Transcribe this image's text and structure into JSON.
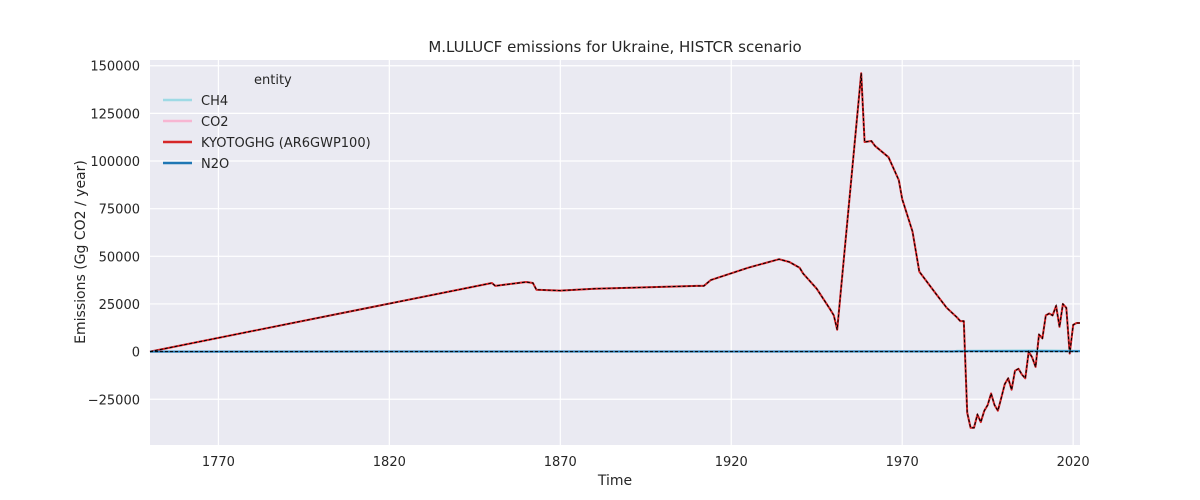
{
  "chart_data": {
    "type": "line",
    "title": "M.LULUCF emissions for Ukraine, HISTCR scenario",
    "xlabel": "Time",
    "ylabel": "Emissions (Gg CO2 / year)",
    "xlim": [
      1750,
      2022
    ],
    "ylim": [
      -49000,
      153000
    ],
    "x_ticks": [
      1770,
      1820,
      1870,
      1920,
      1970,
      2020
    ],
    "y_ticks": [
      -25000,
      0,
      25000,
      50000,
      75000,
      100000,
      125000,
      150000
    ],
    "x_tick_labels": [
      "1770",
      "1820",
      "1870",
      "1920",
      "1970",
      "2020"
    ],
    "y_tick_labels": [
      "−25000",
      "0",
      "25000",
      "50000",
      "75000",
      "100000",
      "125000",
      "150000"
    ],
    "grid": true,
    "legend": {
      "title": "entity",
      "position": "top-left"
    },
    "series": [
      {
        "name": "CH4",
        "color": "#9edae5",
        "x": [
          1750,
          1985,
          1986,
          2010,
          2022
        ],
        "y": [
          0,
          0,
          500,
          700,
          500
        ]
      },
      {
        "name": "CO2",
        "color": "#f7b6d2",
        "x": [
          1750,
          1850,
          1851,
          1860,
          1862,
          1863,
          1870,
          1880,
          1910,
          1912,
          1914,
          1925,
          1934,
          1937,
          1940,
          1941,
          1945,
          1949,
          1950,
          1951,
          1958,
          1959,
          1961,
          1962,
          1966,
          1969,
          1970,
          1973,
          1975,
          1980,
          1983,
          1986,
          1987,
          1988,
          1989,
          1990,
          1991,
          1992,
          1993,
          1994,
          1995,
          1996,
          1997,
          1998,
          1999,
          2000,
          2001,
          2002,
          2003,
          2004,
          2005,
          2006,
          2007,
          2008,
          2009,
          2010,
          2011,
          2012,
          2013,
          2014,
          2015,
          2016,
          2017,
          2018,
          2019,
          2020,
          2021,
          2022
        ],
        "y": [
          0,
          36000,
          34500,
          36500,
          36000,
          32500,
          32000,
          33000,
          34500,
          34500,
          37500,
          44000,
          48500,
          47000,
          44000,
          41000,
          33000,
          22000,
          19000,
          11500,
          146000,
          110000,
          110500,
          108000,
          102000,
          90000,
          80000,
          63000,
          42000,
          30000,
          23000,
          18000,
          16000,
          16000,
          -32000,
          -40000,
          -40000,
          -33000,
          -37000,
          -31000,
          -28000,
          -22000,
          -28000,
          -31000,
          -24000,
          -17000,
          -14000,
          -20000,
          -10000,
          -9000,
          -12000,
          -14000,
          0,
          -3000,
          -8000,
          9000,
          7000,
          19000,
          20000,
          19000,
          24000,
          13000,
          25000,
          23000,
          -1000,
          14000,
          15000,
          15000
        ]
      },
      {
        "name": "KYOTOGHG (AR6GWP100)",
        "color": "#d62728",
        "x": [
          1750,
          1850,
          1851,
          1860,
          1862,
          1863,
          1870,
          1880,
          1910,
          1912,
          1914,
          1925,
          1934,
          1937,
          1940,
          1941,
          1945,
          1949,
          1950,
          1951,
          1958,
          1959,
          1961,
          1962,
          1966,
          1969,
          1970,
          1973,
          1975,
          1980,
          1983,
          1986,
          1987,
          1988,
          1989,
          1990,
          1991,
          1992,
          1993,
          1994,
          1995,
          1996,
          1997,
          1998,
          1999,
          2000,
          2001,
          2002,
          2003,
          2004,
          2005,
          2006,
          2007,
          2008,
          2009,
          2010,
          2011,
          2012,
          2013,
          2014,
          2015,
          2016,
          2017,
          2018,
          2019,
          2020,
          2021,
          2022
        ],
        "y": [
          0,
          36000,
          34500,
          36500,
          36000,
          32500,
          32000,
          33000,
          34500,
          34500,
          37500,
          44000,
          48500,
          47000,
          44000,
          41000,
          33000,
          22000,
          19000,
          11500,
          146000,
          110000,
          110500,
          108000,
          102000,
          90000,
          80000,
          63000,
          42000,
          30000,
          23000,
          18000,
          16000,
          16000,
          -32000,
          -40000,
          -40000,
          -33000,
          -37000,
          -31000,
          -28000,
          -22000,
          -28000,
          -31000,
          -24000,
          -17000,
          -14000,
          -20000,
          -10000,
          -9000,
          -12000,
          -14000,
          0,
          -3000,
          -8000,
          9000,
          7000,
          19000,
          20000,
          19000,
          24000,
          13000,
          25000,
          23000,
          -1000,
          14000,
          15000,
          15000
        ]
      },
      {
        "name": "N2O",
        "color": "#1f77b4",
        "x": [
          1750,
          1985,
          1990,
          2022
        ],
        "y": [
          0,
          100,
          200,
          200
        ]
      }
    ],
    "total_overlay": {
      "style": "dashed",
      "color": "#000000",
      "x": [
        1750,
        1850,
        1851,
        1860,
        1862,
        1863,
        1870,
        1880,
        1910,
        1912,
        1914,
        1925,
        1934,
        1937,
        1940,
        1941,
        1945,
        1949,
        1950,
        1951,
        1958,
        1959,
        1961,
        1962,
        1966,
        1969,
        1970,
        1973,
        1975,
        1980,
        1983,
        1986,
        1987,
        1988,
        1989,
        1990,
        1991,
        1992,
        1993,
        1994,
        1995,
        1996,
        1997,
        1998,
        1999,
        2000,
        2001,
        2002,
        2003,
        2004,
        2005,
        2006,
        2007,
        2008,
        2009,
        2010,
        2011,
        2012,
        2013,
        2014,
        2015,
        2016,
        2017,
        2018,
        2019,
        2020,
        2021,
        2022
      ],
      "y": [
        0,
        36000,
        34500,
        36500,
        36000,
        32500,
        32000,
        33000,
        34500,
        34500,
        37500,
        44000,
        48500,
        47000,
        44000,
        41000,
        33000,
        22000,
        19000,
        11500,
        146000,
        110000,
        110500,
        108000,
        102000,
        90000,
        80000,
        63000,
        42000,
        30000,
        23000,
        18000,
        16000,
        16000,
        -32000,
        -40000,
        -40000,
        -33000,
        -37000,
        -31000,
        -28000,
        -22000,
        -28000,
        -31000,
        -24000,
        -17000,
        -14000,
        -20000,
        -10000,
        -9000,
        -12000,
        -14000,
        0,
        -3000,
        -8000,
        9000,
        7000,
        19000,
        20000,
        19000,
        24000,
        13000,
        25000,
        23000,
        -1000,
        14000,
        15000,
        15000
      ]
    },
    "zero_dashed_overlay": {
      "style": "dashed",
      "color": "#000000",
      "x": [
        1750,
        2022
      ],
      "y": [
        0,
        0
      ]
    }
  }
}
